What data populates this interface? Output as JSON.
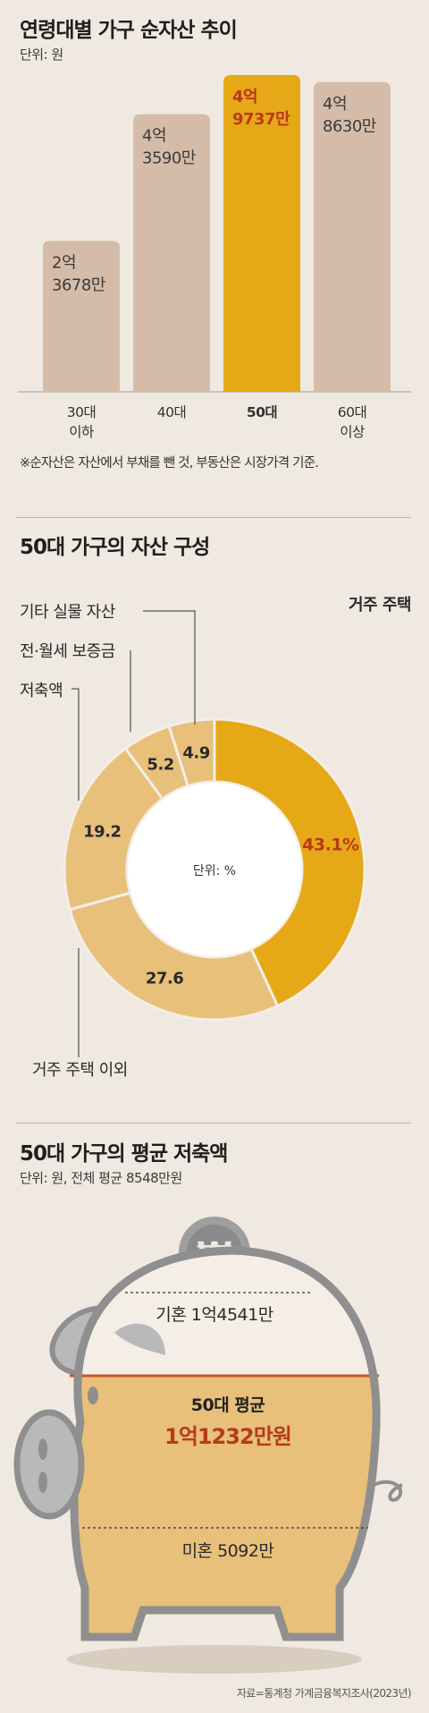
{
  "section1": {
    "title": "연령대별 가구 순자산 추이",
    "unit": "단위: 원",
    "note": "※순자산은 자산에서 부채를 뺀 것, 부동산은 시장가격 기준."
  },
  "section2": {
    "title": "50대 가구의 자산 구성",
    "center_label": "단위: %"
  },
  "section3": {
    "title": "50대 가구의 평균 저축액",
    "unit": "단위: 원, 전체 평균 8548만원",
    "married": "기혼 1억4541만",
    "avg_label": "50대 평균",
    "avg_value": "1억1232만원",
    "single": "미혼 5092만"
  },
  "source": "자료=통계청 가계금융복지조사(2023년)",
  "colors": {
    "bar": "#d5bca9",
    "bar_highlight": "#e6a817",
    "highlight_text": "#b73a1b",
    "donut_main": "#e6a817",
    "donut_other": "#e8c07a",
    "piggy_fill": "#e8c07a",
    "piggy_outline": "#8f8f8f",
    "avg_line": "#c9542a"
  },
  "chart_data": [
    {
      "type": "bar",
      "categories": [
        "30대\n이하",
        "40대",
        "50대",
        "60대\n이상"
      ],
      "values": [
        236780000,
        435900000,
        497370000,
        486300000
      ],
      "labels": [
        "2억\n3678만",
        "4억\n3590만",
        "4억\n9737만",
        "4억\n8630만"
      ],
      "highlight_index": 2,
      "ylim": [
        0,
        500000000
      ]
    },
    {
      "type": "pie",
      "categories": [
        "거주 주택",
        "거주 주택 이외",
        "저축액",
        "전·월세 보증금",
        "기타 실물 자산"
      ],
      "values": [
        43.1,
        27.6,
        19.2,
        5.2,
        4.9
      ],
      "labels": [
        "43.1%",
        "27.6",
        "19.2",
        "5.2",
        "4.9"
      ],
      "donut": true
    },
    {
      "type": "bar",
      "categories": [
        "기혼",
        "50대 평균",
        "미혼"
      ],
      "values": [
        145410000,
        112320000,
        50920000
      ]
    }
  ]
}
